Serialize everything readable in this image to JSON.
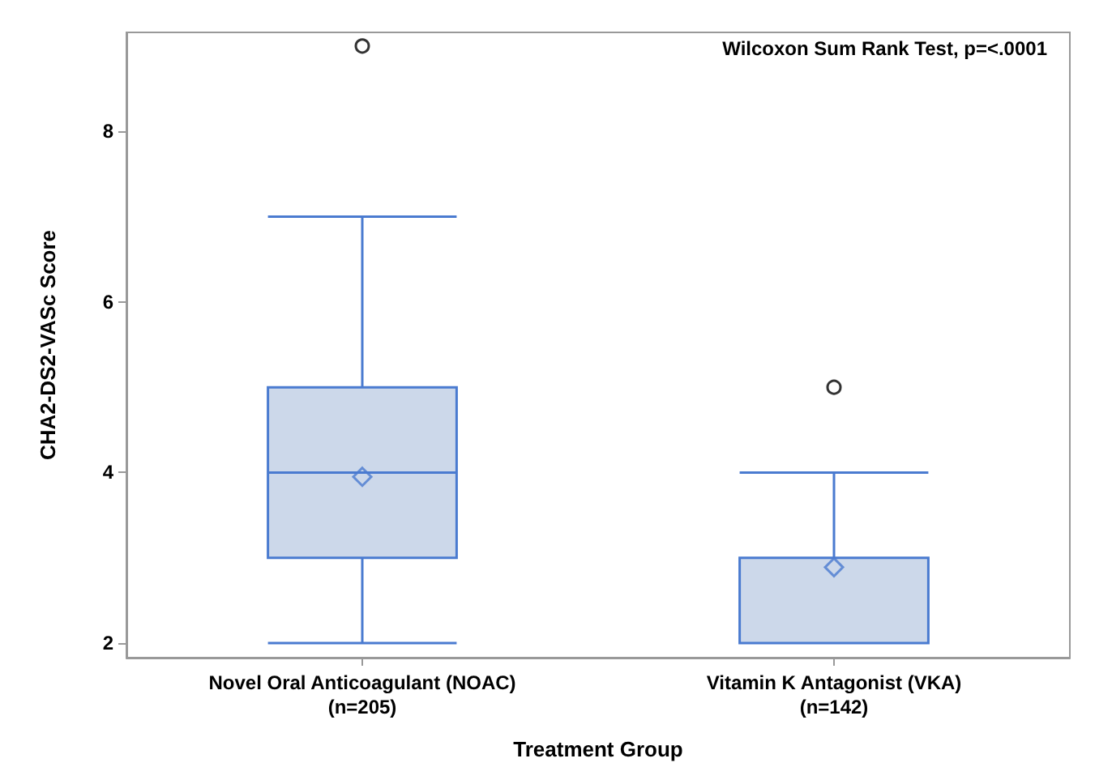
{
  "chart_data": {
    "type": "box",
    "xlabel": "Treatment Group",
    "ylabel": "CHA2-DS2-VASc Score",
    "annotations": [
      "Wilcoxon Sum Rank Test, p=<.0001"
    ],
    "categories": [
      "Novel Oral Anticoagulant (NOAC)\n(n=205)",
      "Vitamin K Antagonist (VKA)\n(n=142)"
    ],
    "boxes": [
      {
        "low": 2,
        "q1": 3,
        "median": 4,
        "q3": 5,
        "high": 7,
        "mean": 3.95,
        "outliers": [
          9
        ]
      },
      {
        "low": 2,
        "q1": 2,
        "median": 2,
        "q3": 3,
        "high": 4,
        "mean": 2.89,
        "outliers": [
          5
        ]
      }
    ],
    "color": "#ccd8ea",
    "ylim": [
      1.83,
      9.16
    ],
    "yticks": [
      2,
      4,
      6,
      8
    ]
  }
}
